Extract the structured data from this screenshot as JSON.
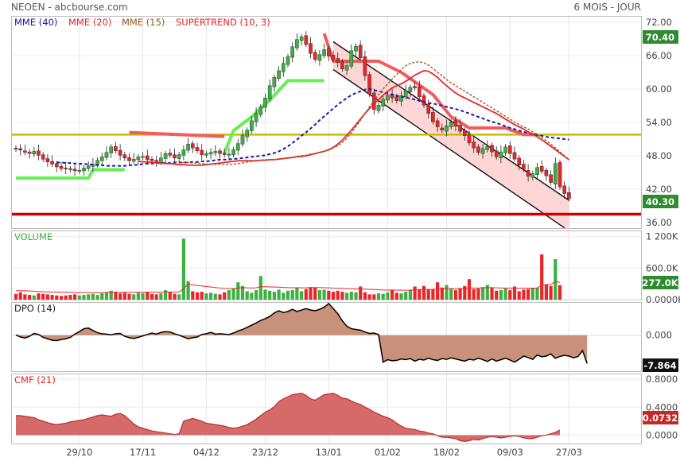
{
  "header": {
    "left": "NEOEN - abcbourse.com",
    "right": "6 MOIS - JOUR"
  },
  "colors": {
    "up": "#3cb043",
    "down": "#e8262a",
    "mme40": "#1a1aa6",
    "mme20": "#e8262a",
    "mme15": "#9a5a1e",
    "supertrend_up": "#66ee55",
    "supertrend_down": "#f25c5c",
    "support": "#c8bd00",
    "resistance": "#cc0000",
    "channel_fill": "#ffc8c8",
    "dpo_fill": "#c9917a",
    "cmf_fill": "#d66a6a"
  },
  "chart_data": [
    {
      "type": "candlestick",
      "legend": [
        {
          "label": "MME (40)",
          "color": "#1a1aa6"
        },
        {
          "label": "MME (20)",
          "color": "#e8262a"
        },
        {
          "label": "MME (15)",
          "color": "#9a5a1e"
        },
        {
          "label": "SUPERTREND (10, 3)",
          "color": "#e8262a"
        }
      ],
      "y_ticks": [
        "72.00",
        "66.00",
        "60.00",
        "54.00",
        "48.00",
        "42.00",
        "36.00"
      ],
      "ylim": [
        35,
        73
      ],
      "x_ticks": [
        "29/10",
        "17/11",
        "04/12",
        "23/12",
        "13/01",
        "01/02",
        "18/02",
        "09/03",
        "27/03"
      ],
      "last_price": "40.30",
      "max_label": "70.40",
      "horizontal_lines": [
        {
          "name": "support",
          "value": 51.8
        },
        {
          "name": "resistance",
          "value": 37.5
        }
      ],
      "close": [
        49.2,
        49.0,
        48.6,
        48.4,
        48.8,
        48.1,
        47.4,
        46.9,
        46.5,
        46.0,
        45.7,
        45.6,
        45.5,
        45.3,
        45.4,
        45.8,
        46.2,
        46.5,
        47.2,
        47.8,
        48.6,
        49.6,
        48.9,
        48.1,
        47.6,
        47.1,
        47.4,
        47.8,
        47.9,
        47.3,
        47.1,
        46.9,
        47.6,
        48.4,
        48.1,
        47.6,
        48.2,
        49.1,
        50.1,
        49.4,
        48.9,
        48.2,
        48.4,
        48.6,
        48.8,
        48.4,
        48.2,
        48.3,
        49.1,
        50.2,
        51.6,
        52.6,
        54.3,
        55.6,
        56.8,
        58.4,
        60.6,
        62.1,
        63.3,
        64.6,
        65.8,
        67.6,
        68.9,
        69.4,
        68.0,
        66.4,
        65.3,
        66.2,
        67.1,
        65.9,
        65.3,
        64.8,
        63.6,
        64.2,
        66.9,
        67.7,
        65.6,
        62.4,
        59.1,
        56.3,
        57.1,
        58.2,
        58.9,
        58.4,
        57.9,
        58.8,
        59.7,
        60.3,
        60.2,
        58.6,
        57.1,
        55.6,
        54.1,
        53.2,
        52.6,
        53.4,
        54.1,
        53.3,
        52.4,
        51.6,
        50.3,
        49.4,
        48.6,
        49.3,
        49.7,
        48.7,
        47.8,
        48.7,
        49.6,
        48.4,
        47.4,
        46.3,
        45.6,
        44.3,
        44.8,
        45.9,
        45.2,
        44.4,
        43.2,
        46.6,
        42.4,
        41.2,
        40.3
      ],
      "open": [
        49.4,
        49.3,
        48.9,
        48.7,
        48.3,
        48.9,
        48.2,
        47.5,
        47.0,
        46.6,
        46.1,
        45.8,
        45.7,
        45.6,
        45.2,
        45.3,
        45.7,
        46.1,
        46.4,
        47.1,
        47.7,
        48.5,
        49.7,
        49.0,
        48.2,
        47.7,
        47.0,
        47.3,
        47.7,
        48.0,
        47.4,
        47.2,
        46.8,
        47.5,
        48.5,
        48.2,
        47.5,
        48.1,
        49.0,
        50.2,
        49.5,
        49.0,
        48.1,
        48.3,
        48.5,
        48.9,
        48.5,
        48.1,
        48.2,
        49.0,
        50.1,
        51.4,
        52.5,
        54.1,
        55.4,
        56.7,
        58.2,
        60.4,
        61.9,
        63.1,
        64.4,
        65.7,
        67.4,
        68.7,
        69.6,
        68.2,
        66.6,
        65.1,
        66.0,
        67.3,
        66.1,
        65.5,
        64.9,
        63.4,
        64.1,
        66.8,
        67.9,
        65.8,
        62.6,
        59.3,
        56.1,
        56.9,
        58.0,
        59.1,
        58.6,
        57.8,
        58.6,
        59.5,
        60.5,
        60.4,
        58.8,
        57.3,
        55.8,
        54.3,
        53.0,
        52.4,
        53.2,
        54.3,
        53.5,
        52.6,
        51.8,
        50.5,
        49.6,
        48.4,
        49.1,
        49.9,
        48.9,
        47.6,
        48.5,
        49.8,
        48.6,
        47.6,
        46.5,
        45.4,
        44.1,
        44.6,
        46.1,
        45.4,
        44.6,
        42.9,
        46.8,
        42.6,
        41.4
      ],
      "mme40": [
        46.8,
        46.8,
        46.7,
        46.7,
        46.6,
        46.6,
        46.5,
        46.5,
        46.4,
        46.3,
        46.3,
        46.2,
        46.2,
        46.2,
        46.2,
        46.2,
        46.3,
        46.3,
        46.4,
        46.5,
        46.6,
        46.6,
        46.7,
        46.7,
        46.7,
        46.7,
        46.8,
        46.8,
        46.8,
        46.8,
        46.9,
        46.9,
        47.0,
        47.0,
        47.1,
        47.2,
        47.3,
        47.3,
        47.4,
        47.4,
        47.5,
        47.6,
        47.7,
        47.8,
        47.9,
        48.0,
        48.1,
        48.3,
        48.5,
        48.8,
        49.2,
        49.7,
        50.3,
        50.9,
        51.6,
        52.2,
        52.9,
        53.6,
        54.4,
        55.1,
        55.8,
        56.5,
        57.2,
        57.8,
        58.4,
        58.9,
        59.3,
        59.6,
        59.9,
        60.0,
        59.8,
        59.6,
        59.4,
        59.2,
        59.0,
        58.8,
        58.6,
        58.5,
        58.3,
        58.1,
        57.9,
        57.7,
        57.5,
        57.4,
        57.2,
        57.0,
        56.8,
        56.6,
        56.4,
        56.2,
        55.9,
        55.6,
        55.3,
        55.0,
        54.7,
        54.4,
        54.1,
        53.9,
        53.6,
        53.3,
        53.0,
        52.8,
        52.5,
        52.3,
        52.1,
        51.9,
        51.7,
        51.6,
        51.4,
        51.3,
        51.2,
        51.1,
        51.0,
        50.9
      ],
      "mme20": [
        47.0,
        46.9,
        46.9,
        46.8,
        46.8,
        46.7,
        46.6,
        46.6,
        46.5,
        46.4,
        46.4,
        46.3,
        46.3,
        46.3,
        46.3,
        46.4,
        46.5,
        46.6,
        46.7,
        46.8,
        46.9,
        47.0,
        47.1,
        47.1,
        47.1,
        47.1,
        47.1,
        47.2,
        47.2,
        47.3,
        47.3,
        47.4,
        47.5,
        47.6,
        47.7,
        47.8,
        47.9,
        48.0,
        48.2,
        48.4,
        48.6,
        48.8,
        49.1,
        49.5,
        50.1,
        50.8,
        51.7,
        52.6,
        53.6,
        54.6,
        55.6,
        56.5,
        57.3,
        58.1,
        58.9,
        59.6,
        60.2,
        60.6,
        60.9,
        61.4,
        61.9,
        62.5,
        62.9,
        63.3,
        63.2,
        62.7,
        62.1,
        61.3,
        60.6,
        59.9,
        59.3,
        58.8,
        58.4,
        58.0,
        57.6,
        57.2,
        56.8,
        56.4,
        56.0,
        55.6,
        55.1,
        54.6,
        54.1,
        53.6,
        53.2,
        52.8,
        52.3,
        51.9,
        51.4,
        50.9,
        50.3,
        49.7,
        49.1,
        48.5,
        47.9,
        47.3
      ],
      "mme15": [
        46.9,
        46.9,
        46.8,
        46.8,
        46.7,
        46.7,
        46.6,
        46.5,
        46.5,
        46.5,
        46.4,
        46.4,
        46.4,
        46.5,
        46.6,
        46.7,
        46.9,
        47.0,
        47.1,
        47.2,
        47.3,
        47.3,
        47.3,
        47.4,
        47.5,
        47.6,
        47.7,
        47.9,
        48.0,
        48.1,
        48.3,
        48.4,
        48.6,
        48.8,
        49.0,
        49.4,
        49.8,
        50.4,
        51.2,
        52.1,
        53.2,
        54.4,
        55.6,
        56.8,
        57.9,
        59.0,
        60.0,
        60.9,
        61.8,
        62.6,
        63.5,
        64.2,
        64.6,
        64.8,
        64.9,
        64.7,
        64.3,
        63.7,
        63.0,
        62.4,
        61.7,
        61.1,
        60.6,
        60.1,
        59.6,
        59.1,
        58.6,
        58.1,
        57.6,
        57.1,
        56.6,
        56.1,
        55.6,
        55.1,
        54.6,
        54.1,
        53.6,
        53.2,
        52.8,
        52.3,
        51.8,
        51.3,
        50.7,
        50.1,
        49.4,
        48.7,
        48.0,
        47.3
      ],
      "supertrend": [
        {
          "trend": "up",
          "points": [
            [
              0,
              44.0
            ],
            [
              16,
              44.0
            ],
            [
              17,
              45.5
            ],
            [
              24,
              45.5
            ]
          ]
        },
        {
          "trend": "down",
          "points": [
            [
              25,
              52.2
            ],
            [
              45,
              51.5
            ],
            [
              46,
              51.5
            ]
          ]
        },
        {
          "trend": "up",
          "points": [
            [
              46,
              48.5
            ],
            [
              48,
              52.5
            ],
            [
              52,
              55.0
            ],
            [
              56,
              58.0
            ],
            [
              60,
              61.5
            ],
            [
              68,
              61.5
            ]
          ]
        },
        {
          "trend": "down",
          "points": [
            [
              68,
              70.0
            ],
            [
              70,
              65.0
            ],
            [
              80,
              65.0
            ],
            [
              85,
              63.0
            ],
            [
              92,
              59.0
            ],
            [
              96,
              55.0
            ],
            [
              100,
              53.0
            ],
            [
              108,
              53.0
            ],
            [
              112,
              51.8
            ],
            [
              115,
              51.8
            ]
          ]
        }
      ],
      "channel": {
        "upper": [
          [
            70,
            68.5
          ],
          [
            122,
            40.0
          ]
        ],
        "lower": [
          [
            70,
            63.5
          ],
          [
            122,
            34.5
          ]
        ]
      }
    },
    {
      "type": "bar",
      "title": "VOLUME",
      "y_ticks": [
        "1 200K",
        "600.0K",
        "0.0000K"
      ],
      "ylim": [
        0,
        1300
      ],
      "last_value": "277.0K",
      "values": [
        110,
        140,
        100,
        90,
        80,
        120,
        110,
        100,
        90,
        80,
        70,
        80,
        90,
        100,
        80,
        90,
        100,
        110,
        90,
        120,
        140,
        170,
        150,
        120,
        130,
        110,
        100,
        130,
        120,
        150,
        110,
        100,
        120,
        180,
        140,
        110,
        100,
        1160,
        350,
        160,
        140,
        150,
        120,
        130,
        110,
        100,
        140,
        180,
        220,
        330,
        260,
        160,
        130,
        180,
        450,
        190,
        170,
        150,
        190,
        130,
        170,
        180,
        220,
        160,
        200,
        240,
        230,
        180,
        190,
        170,
        150,
        170,
        150,
        130,
        150,
        140,
        250,
        140,
        100,
        100,
        120,
        110,
        140,
        180,
        130,
        120,
        150,
        190,
        250,
        200,
        260,
        190,
        200,
        330,
        230,
        280,
        210,
        180,
        220,
        260,
        390,
        200,
        210,
        240,
        280,
        220,
        170,
        180,
        210,
        180,
        250,
        160,
        190,
        200,
        220,
        230,
        860,
        280,
        260,
        770,
        277
      ],
      "ma": [
        170,
        170,
        168,
        165,
        160,
        155,
        150,
        148,
        146,
        144,
        142,
        140,
        138,
        136,
        135,
        134,
        133,
        133,
        134,
        135,
        138,
        140,
        141,
        142,
        141,
        140,
        140,
        141,
        142,
        143,
        143,
        142,
        143,
        145,
        145,
        145,
        145,
        210,
        300,
        280,
        270,
        260,
        250,
        240,
        230,
        222,
        215,
        210,
        210,
        222,
        228,
        225,
        222,
        225,
        245,
        245,
        242,
        240,
        238,
        232,
        228,
        226,
        226,
        224,
        225,
        228,
        230,
        228,
        226,
        224,
        220,
        218,
        214,
        210,
        206,
        202,
        204,
        200,
        196,
        192,
        188,
        184,
        182,
        184,
        182,
        180,
        180,
        182,
        186,
        188,
        192,
        194,
        196,
        204,
        206,
        210,
        210,
        208,
        210,
        212,
        222,
        222,
        222,
        224,
        228,
        228,
        224,
        222,
        222,
        220,
        222,
        218,
        218,
        218,
        220,
        222,
        280,
        285,
        290,
        340,
        330
      ]
    },
    {
      "type": "area",
      "title": "DPO (14)",
      "y_ticks": [
        "0.000"
      ],
      "ylim": [
        -10,
        9
      ],
      "last_value": "-7.864",
      "values": [
        0.1,
        -0.5,
        -0.8,
        -0.3,
        0.5,
        0.2,
        -0.6,
        -1.0,
        -1.4,
        -1.5,
        -1.2,
        -1.0,
        -0.6,
        0.3,
        1.0,
        1.8,
        2.0,
        1.3,
        0.7,
        0.4,
        0.3,
        0.1,
        0.4,
        0.5,
        -0.3,
        -0.7,
        -0.9,
        -0.6,
        -0.2,
        0.2,
        0.6,
        0.3,
        0.8,
        1.0,
        0.9,
        0.4,
        0.0,
        -0.5,
        -1.0,
        -0.7,
        -0.5,
        0.2,
        0.4,
        0.8,
        0.3,
        0.4,
        0.3,
        0.2,
        0.6,
        1.2,
        1.6,
        2.2,
        2.8,
        3.4,
        4.1,
        4.6,
        5.2,
        6.2,
        6.8,
        6.3,
        6.6,
        7.2,
        6.6,
        7.0,
        7.4,
        7.0,
        6.8,
        7.2,
        7.8,
        8.8,
        7.4,
        6.0,
        4.0,
        2.5,
        1.8,
        1.6,
        1.4,
        0.9,
        0.5,
        0.6,
        0.2,
        -7.5,
        -6.8,
        -7.1,
        -7.0,
        -6.6,
        -6.8,
        -6.5,
        -7.2,
        -6.7,
        -6.9,
        -6.4,
        -6.8,
        -7.0,
        -6.5,
        -6.7,
        -6.3,
        -6.6,
        -6.9,
        -7.2,
        -6.7,
        -6.9,
        -6.4,
        -6.8,
        -7.3,
        -6.6,
        -7.2,
        -6.8,
        -6.4,
        -6.9,
        -7.5,
        -6.7,
        -5.8,
        -6.2,
        -6.7,
        -5.5,
        -6.0,
        -5.8,
        -5.2,
        -6.4,
        -5.9,
        -5.6,
        -5.8,
        -6.3,
        -5.9,
        -4.3,
        -7.864
      ]
    },
    {
      "type": "area",
      "title": "CMF (21)",
      "y_ticks": [
        "0.8000",
        "0.4000",
        "0.0000"
      ],
      "ylim": [
        -0.12,
        0.87
      ],
      "last_value": "0.0732",
      "values": [
        0.28,
        0.28,
        0.27,
        0.26,
        0.25,
        0.22,
        0.2,
        0.18,
        0.16,
        0.15,
        0.16,
        0.17,
        0.19,
        0.2,
        0.21,
        0.22,
        0.24,
        0.26,
        0.28,
        0.29,
        0.28,
        0.27,
        0.3,
        0.31,
        0.28,
        0.22,
        0.16,
        0.12,
        0.1,
        0.08,
        0.06,
        0.05,
        0.04,
        0.03,
        0.02,
        0.01,
        0.02,
        0.2,
        0.22,
        0.24,
        0.22,
        0.2,
        0.17,
        0.16,
        0.15,
        0.14,
        0.13,
        0.11,
        0.1,
        0.11,
        0.13,
        0.15,
        0.19,
        0.23,
        0.28,
        0.33,
        0.36,
        0.41,
        0.48,
        0.52,
        0.55,
        0.58,
        0.59,
        0.6,
        0.57,
        0.52,
        0.5,
        0.54,
        0.58,
        0.59,
        0.6,
        0.57,
        0.53,
        0.52,
        0.49,
        0.46,
        0.44,
        0.4,
        0.37,
        0.33,
        0.3,
        0.27,
        0.25,
        0.22,
        0.17,
        0.13,
        0.1,
        0.09,
        0.08,
        0.06,
        0.05,
        0.03,
        0.02,
        -0.01,
        -0.03,
        -0.03,
        -0.04,
        -0.05,
        -0.08,
        -0.09,
        -0.08,
        -0.06,
        -0.07,
        -0.05,
        -0.03,
        -0.02,
        -0.03,
        -0.04,
        -0.03,
        -0.02,
        -0.01,
        -0.02,
        -0.04,
        -0.05,
        -0.05,
        -0.03,
        -0.01,
        0.0,
        0.02,
        0.04,
        0.0732
      ]
    }
  ]
}
